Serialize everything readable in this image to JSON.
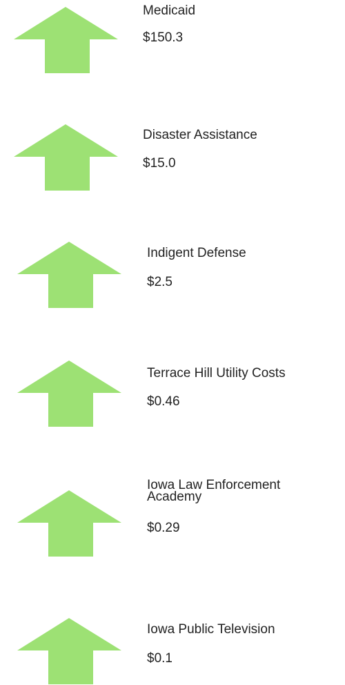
{
  "items": [
    {
      "label": "Medicaid",
      "amount": "$150.3"
    },
    {
      "label": "Disaster Assistance",
      "amount": "$15.0"
    },
    {
      "label": "Indigent Defense",
      "amount": "$2.5"
    },
    {
      "label": "Terrace Hill Utility Costs",
      "amount": "$0.46"
    },
    {
      "label": "Iowa Law Enforcement Academy",
      "amount": "$0.29"
    },
    {
      "label": "Iowa Public Television",
      "amount": "$0.1"
    }
  ]
}
